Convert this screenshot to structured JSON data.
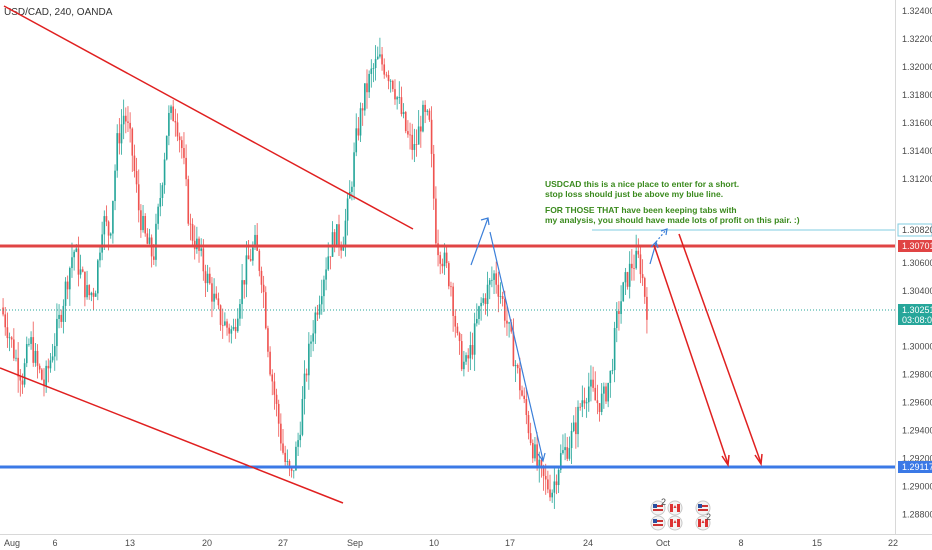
{
  "chart_data": {
    "type": "candlestick",
    "title": "USD/CAD, 240, OANDA",
    "y_ticks": [
      "1.32400",
      "1.32200",
      "1.32000",
      "1.31800",
      "1.31600",
      "1.31400",
      "1.31200",
      "1.30820",
      "1.30701",
      "1.30600",
      "1.30400",
      "1.30251",
      "1.30000",
      "1.29800",
      "1.29600",
      "1.29400",
      "1.29200",
      "1.29117",
      "1.29000",
      "1.28800"
    ],
    "y_tick_values": [
      1.324,
      1.322,
      1.32,
      1.318,
      1.316,
      1.314,
      1.312,
      1.3082,
      1.30701,
      1.306,
      1.304,
      1.30251,
      1.3,
      1.298,
      1.296,
      1.294,
      1.292,
      1.29117,
      1.29,
      1.288
    ],
    "x_ticks": [
      "Aug",
      "6",
      "13",
      "20",
      "27",
      "Sep",
      "10",
      "17",
      "24",
      "Oct",
      "8",
      "15",
      "22"
    ],
    "ylim": [
      1.2866,
      1.3248
    ],
    "price_labels": {
      "resistance": {
        "value": 1.30701,
        "label": "1.30701",
        "color": "#e04444"
      },
      "target": {
        "value": 1.3082,
        "label": "1.30820",
        "color": "#80cce0"
      },
      "current": {
        "value": 1.30251,
        "label": "1.30251",
        "color": "#26a69a",
        "countdown": "03:08:09"
      },
      "support": {
        "value": 1.29117,
        "label": "1.29117",
        "color": "#3b79e6"
      }
    },
    "annotation": {
      "line1": "USDCAD this is a nice place to enter for a short.",
      "line2": "stop loss should just be above my blue line.",
      "line3": "FOR THOSE THAT have been keeping tabs with",
      "line4": "my analysis, you should have made lots of profit on this pair. :)"
    },
    "event_badges": [
      "2",
      "2"
    ],
    "colors": {
      "up": "#26a69a",
      "down": "#ef5350",
      "trendline": "#e02020",
      "projection": "#3b7fd9"
    },
    "price_path": [
      1.3028,
      1.3012,
      1.2992,
      1.2978,
      1.3005,
      1.2985,
      1.2973,
      1.2995,
      1.3018,
      1.3045,
      1.307,
      1.3052,
      1.3036,
      1.3042,
      1.3092,
      1.308,
      1.3145,
      1.3168,
      1.3142,
      1.3098,
      1.3075,
      1.3064,
      1.311,
      1.3162,
      1.3168,
      1.314,
      1.3085,
      1.3072,
      1.3055,
      1.304,
      1.3022,
      1.3015,
      1.301,
      1.304,
      1.306,
      1.3072,
      1.305,
      1.299,
      1.2955,
      1.292,
      1.2905,
      1.2935,
      1.298,
      1.3015,
      1.304,
      1.3065,
      1.308,
      1.3075,
      1.3105,
      1.315,
      1.3178,
      1.3195,
      1.3205,
      1.32,
      1.319,
      1.317,
      1.315,
      1.314,
      1.3165,
      1.316,
      1.3075,
      1.3062,
      1.3045,
      1.2998,
      1.2985,
      1.3002,
      1.3028,
      1.304,
      1.3052,
      1.3035,
      1.301,
      1.2985,
      1.296,
      1.2935,
      1.2912,
      1.2902,
      1.2898,
      1.292,
      1.2928,
      1.294,
      1.2962,
      1.2972,
      1.296,
      1.2962,
      1.298,
      1.3025,
      1.3045,
      1.306,
      1.3062,
      1.3028
    ]
  }
}
